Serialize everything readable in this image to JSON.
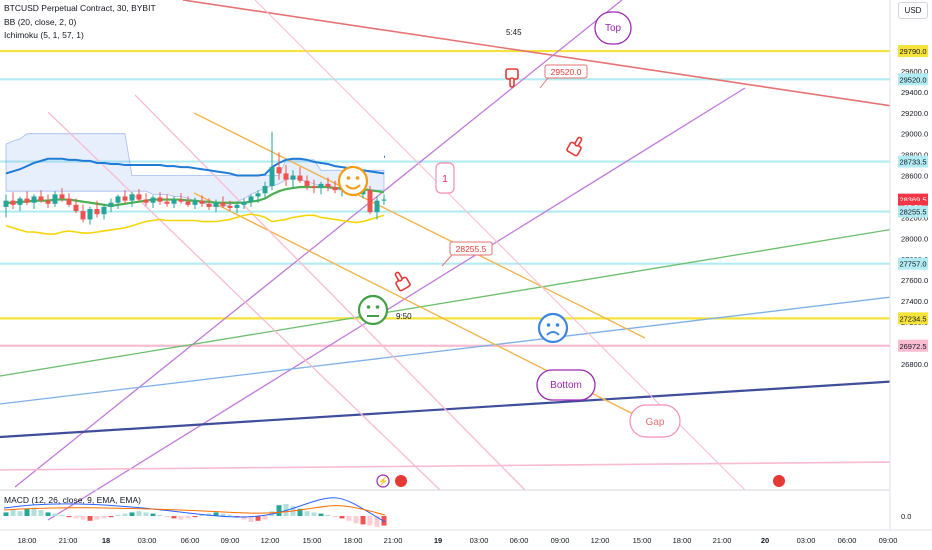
{
  "header": {
    "symbol_line": "BTCUSD Perpetual Contract, 30, BYBIT",
    "bb_line": "BB (20, close, 2, 0)",
    "ichimoku_line": "Ichimoku (5, 1, 57, 1)",
    "currency_button": "USD"
  },
  "macd": {
    "label": "MACD (12, 26, close, 9, EMA, EMA)",
    "zero_label": "0.0"
  },
  "chart_data": {
    "type": "candlestick",
    "title": "BTCUSD Perpetual Contract, 30, BYBIT",
    "y_axis": {
      "min": 26700,
      "max": 30100,
      "ticks": [
        "26800.0",
        "27000.0",
        "27200.0",
        "27400.0",
        "27600.0",
        "27800.0",
        "28000.0",
        "28200.0",
        "28400.0",
        "28600.0",
        "28800.0",
        "29000.0",
        "29200.0",
        "29400.0",
        "29600.0",
        "29800.0"
      ]
    },
    "x_axis": {
      "ticks": [
        "18:00",
        "21:00",
        "18",
        "03:00",
        "06:00",
        "09:00",
        "12:00",
        "15:00",
        "18:00",
        "21:00",
        "19",
        "03:00",
        "06:00",
        "09:00",
        "12:00",
        "15:00",
        "18:00",
        "21:00",
        "20",
        "03:00",
        "06:00",
        "09:00"
      ]
    },
    "price_labels": [
      {
        "text": "29790.0",
        "value": 29790,
        "color": "#f5e33b"
      },
      {
        "text": "29520.0",
        "value": 29520,
        "color": "#b2ebf2"
      },
      {
        "text": "28733.5",
        "value": 28733.5,
        "color": "#b2ebf2"
      },
      {
        "text": "28369.5",
        "value": 28369.5,
        "color": "#f23645"
      },
      {
        "text": "25:50",
        "value": 28300,
        "color": "#f23645"
      },
      {
        "text": "28255.5",
        "value": 28255.5,
        "color": "#b2ebf2"
      },
      {
        "text": "27757.0",
        "value": 27757,
        "color": "#b2ebf2"
      },
      {
        "text": "27234.5",
        "value": 27234.5,
        "color": "#f5e33b"
      },
      {
        "text": "26972.5",
        "value": 26972.5,
        "color": "#f8bbd0"
      }
    ],
    "horizontal_levels": [
      {
        "value": 29790,
        "color": "#f5e33b"
      },
      {
        "value": 29520,
        "color": "#b2ebf2"
      },
      {
        "value": 28733.5,
        "color": "#b2ebf2"
      },
      {
        "value": 28255.5,
        "color": "#b2ebf2"
      },
      {
        "value": 27757,
        "color": "#b2ebf2"
      },
      {
        "value": 27234.5,
        "color": "#f5e33b"
      },
      {
        "value": 26972.5,
        "color": "#f8bbd0"
      }
    ],
    "candles": [
      {
        "o": 28300,
        "h": 28420,
        "l": 28200,
        "c": 28360
      },
      {
        "o": 28360,
        "h": 28440,
        "l": 28280,
        "c": 28320
      },
      {
        "o": 28320,
        "h": 28400,
        "l": 28260,
        "c": 28380
      },
      {
        "o": 28380,
        "h": 28450,
        "l": 28320,
        "c": 28340
      },
      {
        "o": 28340,
        "h": 28420,
        "l": 28280,
        "c": 28400
      },
      {
        "o": 28400,
        "h": 28460,
        "l": 28340,
        "c": 28360
      },
      {
        "o": 28360,
        "h": 28420,
        "l": 28290,
        "c": 28330
      },
      {
        "o": 28330,
        "h": 28450,
        "l": 28300,
        "c": 28420
      },
      {
        "o": 28420,
        "h": 28480,
        "l": 28350,
        "c": 28380
      },
      {
        "o": 28380,
        "h": 28430,
        "l": 28300,
        "c": 28320
      },
      {
        "o": 28320,
        "h": 28380,
        "l": 28240,
        "c": 28260
      },
      {
        "o": 28260,
        "h": 28320,
        "l": 28150,
        "c": 28180
      },
      {
        "o": 28180,
        "h": 28300,
        "l": 28130,
        "c": 28280
      },
      {
        "o": 28280,
        "h": 28360,
        "l": 28200,
        "c": 28230
      },
      {
        "o": 28230,
        "h": 28330,
        "l": 28180,
        "c": 28300
      },
      {
        "o": 28300,
        "h": 28380,
        "l": 28250,
        "c": 28340
      },
      {
        "o": 28340,
        "h": 28420,
        "l": 28280,
        "c": 28400
      },
      {
        "o": 28400,
        "h": 28460,
        "l": 28330,
        "c": 28360
      },
      {
        "o": 28360,
        "h": 28440,
        "l": 28300,
        "c": 28420
      },
      {
        "o": 28420,
        "h": 28470,
        "l": 28350,
        "c": 28370
      },
      {
        "o": 28370,
        "h": 28430,
        "l": 28310,
        "c": 28340
      },
      {
        "o": 28340,
        "h": 28410,
        "l": 28290,
        "c": 28390
      },
      {
        "o": 28390,
        "h": 28440,
        "l": 28320,
        "c": 28350
      },
      {
        "o": 28350,
        "h": 28420,
        "l": 28300,
        "c": 28330
      },
      {
        "o": 28330,
        "h": 28400,
        "l": 28290,
        "c": 28370
      },
      {
        "o": 28370,
        "h": 28430,
        "l": 28330,
        "c": 28350
      },
      {
        "o": 28350,
        "h": 28400,
        "l": 28300,
        "c": 28320
      },
      {
        "o": 28320,
        "h": 28390,
        "l": 28280,
        "c": 28360
      },
      {
        "o": 28360,
        "h": 28410,
        "l": 28300,
        "c": 28330
      },
      {
        "o": 28330,
        "h": 28380,
        "l": 28270,
        "c": 28300
      },
      {
        "o": 28300,
        "h": 28370,
        "l": 28250,
        "c": 28340
      },
      {
        "o": 28340,
        "h": 28400,
        "l": 28290,
        "c": 28310
      },
      {
        "o": 28310,
        "h": 28360,
        "l": 28260,
        "c": 28290
      },
      {
        "o": 28290,
        "h": 28340,
        "l": 28240,
        "c": 28320
      },
      {
        "o": 28320,
        "h": 28380,
        "l": 28280,
        "c": 28350
      },
      {
        "o": 28350,
        "h": 28420,
        "l": 28300,
        "c": 28400
      },
      {
        "o": 28400,
        "h": 28460,
        "l": 28340,
        "c": 28430
      },
      {
        "o": 28430,
        "h": 28540,
        "l": 28380,
        "c": 28500
      },
      {
        "o": 28500,
        "h": 29020,
        "l": 28460,
        "c": 28680
      },
      {
        "o": 28680,
        "h": 28820,
        "l": 28560,
        "c": 28620
      },
      {
        "o": 28620,
        "h": 28700,
        "l": 28500,
        "c": 28560
      },
      {
        "o": 28560,
        "h": 28650,
        "l": 28480,
        "c": 28600
      },
      {
        "o": 28600,
        "h": 28680,
        "l": 28530,
        "c": 28550
      },
      {
        "o": 28550,
        "h": 28600,
        "l": 28460,
        "c": 28500
      },
      {
        "o": 28500,
        "h": 28560,
        "l": 28430,
        "c": 28480
      },
      {
        "o": 28480,
        "h": 28540,
        "l": 28420,
        "c": 28520
      },
      {
        "o": 28520,
        "h": 28580,
        "l": 28450,
        "c": 28490
      },
      {
        "o": 28490,
        "h": 28550,
        "l": 28430,
        "c": 28460
      },
      {
        "o": 28460,
        "h": 28520,
        "l": 28400,
        "c": 28500
      },
      {
        "o": 28500,
        "h": 28560,
        "l": 28440,
        "c": 28540
      },
      {
        "o": 28540,
        "h": 28580,
        "l": 28400,
        "c": 28420
      },
      {
        "o": 28420,
        "h": 28480,
        "l": 28380,
        "c": 28460
      },
      {
        "o": 28460,
        "h": 28500,
        "l": 28230,
        "c": 28250
      },
      {
        "o": 28250,
        "h": 28400,
        "l": 28180,
        "c": 28360
      },
      {
        "o": 28360,
        "h": 28420,
        "l": 28320,
        "c": 28370
      }
    ],
    "bb_upper": [
      28620,
      28640,
      28660,
      28690,
      28720,
      28740,
      28760,
      28760,
      28760,
      28750,
      28750,
      28740,
      28740,
      28720,
      28720,
      28710,
      28710,
      28700,
      28700,
      28700,
      28700,
      28700,
      28700,
      28690,
      28690,
      28680,
      28680,
      28670,
      28660,
      28650,
      28640,
      28630,
      28620,
      28600,
      28600,
      28600,
      28600,
      28610,
      28680,
      28720,
      28750,
      28760,
      28760,
      28750,
      28730,
      28720,
      28710,
      28690,
      28680,
      28670,
      28660,
      28650,
      28640,
      28630,
      28620
    ],
    "bb_basis": [
      28340,
      28340,
      28350,
      28350,
      28360,
      28360,
      28360,
      28370,
      28370,
      28370,
      28360,
      28350,
      28340,
      28330,
      28320,
      28310,
      28320,
      28330,
      28340,
      28350,
      28360,
      28370,
      28370,
      28370,
      28370,
      28370,
      28360,
      28360,
      28350,
      28350,
      28340,
      28340,
      28340,
      28340,
      28340,
      28350,
      28360,
      28380,
      28420,
      28450,
      28470,
      28480,
      28490,
      28490,
      28490,
      28490,
      28490,
      28480,
      28480,
      28480,
      28480,
      28470,
      28460,
      28450,
      28440
    ],
    "bb_lower": [
      28120,
      28100,
      28080,
      28060,
      28060,
      28050,
      28040,
      28040,
      28060,
      28070,
      28060,
      28050,
      28050,
      28060,
      28070,
      28080,
      28090,
      28100,
      28120,
      28140,
      28160,
      28170,
      28180,
      28170,
      28170,
      28170,
      28170,
      28170,
      28160,
      28160,
      28160,
      28170,
      28180,
      28200,
      28220,
      28230,
      28220,
      28200,
      28160,
      28170,
      28180,
      28200,
      28210,
      28220,
      28220,
      28200,
      28190,
      28180,
      28170,
      28160,
      28150,
      28160,
      28180,
      28200,
      28220
    ],
    "ichimoku_cloud_top": [
      28900,
      28930,
      28950,
      29000,
      29000,
      29000,
      29000,
      29000,
      29000,
      29000,
      29000,
      29000,
      29000,
      29000,
      29000,
      29000,
      29000,
      29000,
      28600,
      28600,
      28600,
      28600,
      28600,
      28600,
      28600,
      28600,
      28600,
      28600,
      28600,
      28600,
      28600,
      28600,
      28600,
      28600,
      28600,
      28600,
      28600,
      28600,
      28600,
      28600,
      28750,
      28750,
      28750,
      28750,
      28750,
      28650,
      28650,
      28650,
      28650,
      28650,
      28650,
      28650,
      28650,
      28650,
      28650
    ],
    "ichimoku_cloud_bottom": [
      28450,
      28450,
      28450,
      28450,
      28450,
      28450,
      28450,
      28450,
      28450,
      28450,
      28450,
      28450,
      28450,
      28450,
      28450,
      28450,
      28450,
      28450,
      28450,
      28450,
      28450,
      28420,
      28420,
      28420,
      28400,
      28400,
      28380,
      28360,
      28340,
      28320,
      28300,
      28300,
      28320,
      28350,
      28380,
      28420,
      28450,
      28480,
      28500,
      28520,
      28560,
      28580,
      28560,
      28540,
      28520,
      28500,
      28480,
      28470,
      28460,
      28460,
      28460,
      28460,
      28460,
      28460,
      28460
    ],
    "annotations": [
      {
        "text": "Top"
      },
      {
        "text": "5:45"
      },
      {
        "text": "29520.0"
      },
      {
        "text": "28255.5"
      },
      {
        "text": "1"
      },
      {
        "text": "9:50"
      },
      {
        "text": "Bottom"
      },
      {
        "text": "Gap"
      }
    ]
  }
}
